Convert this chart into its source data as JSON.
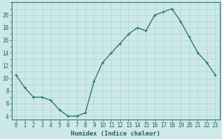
{
  "x": [
    0,
    1,
    2,
    3,
    4,
    5,
    6,
    7,
    8,
    9,
    10,
    11,
    12,
    13,
    14,
    15,
    16,
    17,
    18,
    19,
    20,
    21,
    22,
    23
  ],
  "y": [
    10.5,
    8.5,
    7.0,
    7.0,
    6.5,
    5.0,
    4.0,
    4.0,
    4.5,
    9.5,
    12.5,
    14.0,
    15.5,
    17.0,
    18.0,
    17.5,
    20.0,
    20.5,
    21.0,
    19.0,
    16.5,
    14.0,
    12.5,
    10.5
  ],
  "line_color": "#2a7a6e",
  "marker_color": "#2a7a6e",
  "bg_color": "#cce8e8",
  "grid_color": "#b0d4d4",
  "axis_color": "#2a7a6e",
  "text_color": "#2a6060",
  "xlabel": "Humidex (Indice chaleur)",
  "xlim": [
    -0.5,
    23.5
  ],
  "ylim": [
    3.5,
    22
  ],
  "yticks": [
    4,
    6,
    8,
    10,
    12,
    14,
    16,
    18,
    20
  ],
  "xticks": [
    0,
    1,
    2,
    3,
    4,
    5,
    6,
    7,
    8,
    9,
    10,
    11,
    12,
    13,
    14,
    15,
    16,
    17,
    18,
    19,
    20,
    21,
    22,
    23
  ],
  "tick_fontsize": 5.5,
  "label_fontsize": 6.5,
  "line_width": 1.0,
  "marker_size": 3.5
}
